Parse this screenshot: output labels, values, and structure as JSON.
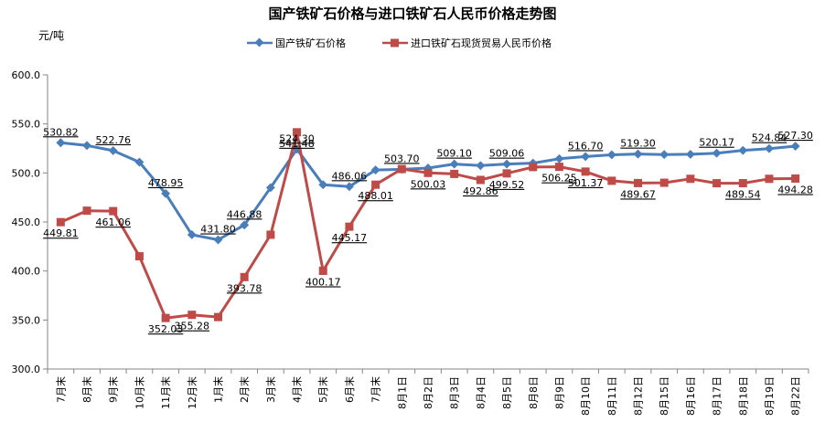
{
  "chart_data": {
    "type": "line",
    "title": "国产铁矿石价格与进口铁矿石人民币价格走势图",
    "unit_label": "元/吨",
    "ylim": [
      300,
      600
    ],
    "yticks": [
      "300.0",
      "350.0",
      "400.0",
      "450.0",
      "500.0",
      "550.0",
      "600.0"
    ],
    "grid": false,
    "legend_position": "top",
    "categories": [
      "7月末",
      "8月末",
      "9月末",
      "10月末",
      "11月末",
      "12月末",
      "1月末",
      "2月末",
      "3月末",
      "4月末",
      "5月末",
      "6月末",
      "7月末",
      "8月1日",
      "8月2日",
      "8月3日",
      "8月4日",
      "8月5日",
      "8月8日",
      "8月9日",
      "8月10日",
      "8月11日",
      "8月12日",
      "8月15日",
      "8月16日",
      "8月17日",
      "8月18日",
      "8月19日",
      "8月22日"
    ],
    "series": [
      {
        "name": "国产铁矿石价格",
        "color": "#4a7ebb",
        "marker": "diamond",
        "values": [
          530.82,
          528.0,
          522.76,
          511.0,
          478.95,
          437.0,
          431.8,
          446.88,
          485.0,
          524.3,
          488.0,
          486.06,
          503.0,
          503.7,
          505.0,
          509.1,
          507.5,
          509.06,
          510.0,
          514.5,
          516.7,
          518.5,
          519.3,
          518.8,
          519.0,
          520.17,
          523.0,
          524.84,
          527.3
        ],
        "labels": {
          "0": "530.82",
          "2": "522.76",
          "4": "478.95",
          "6": "431.80",
          "7": "446.88",
          "9": "524.30",
          "11": "486.06",
          "13": "503.70",
          "15": "509.10",
          "17": "509.06",
          "20": "516.70",
          "22": "519.30",
          "25": "520.17",
          "27": "524.84",
          "28": "527.30"
        }
      },
      {
        "name": "进口铁矿石现货贸易人民币价格",
        "color": "#be4b48",
        "marker": "square",
        "values": [
          449.81,
          461.5,
          461.06,
          415.0,
          352.03,
          355.28,
          353.0,
          393.78,
          437.0,
          541.48,
          400.17,
          445.17,
          488.01,
          504.0,
          500.03,
          499.0,
          492.86,
          499.52,
          506.0,
          506.25,
          501.37,
          492.0,
          489.67,
          490.0,
          494.0,
          489.5,
          489.54,
          494.0,
          494.28
        ],
        "labels": {
          "0": "449.81",
          "2": "461.06",
          "4": "352.03",
          "5": "355.28",
          "7": "393.78",
          "9": "541.48",
          "10": "400.17",
          "11": "445.17",
          "12": "488.01",
          "14": "500.03",
          "16": "492.86",
          "17": "499.52",
          "19": "506.25",
          "20": "501.37",
          "22": "489.67",
          "26": "489.54",
          "28": "494.28"
        }
      }
    ]
  }
}
